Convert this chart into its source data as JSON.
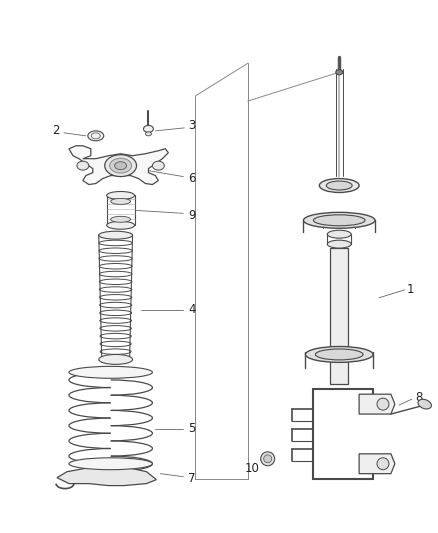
{
  "background_color": "#ffffff",
  "line_color": "#4a4a4a",
  "label_color": "#222222",
  "fig_width": 4.38,
  "fig_height": 5.33,
  "dpi": 100,
  "leader_color": "#666666"
}
